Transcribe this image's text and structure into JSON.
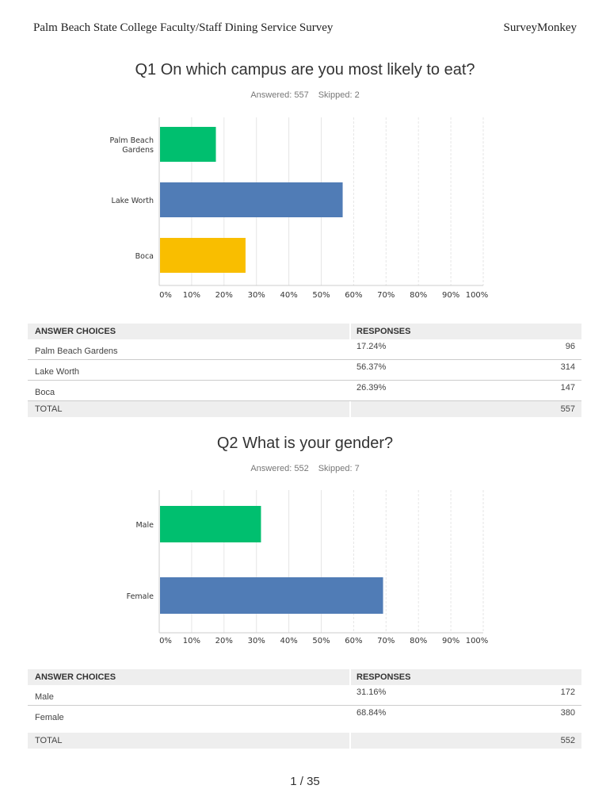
{
  "header": {
    "title": "Palm Beach State College Faculty/Staff Dining Service Survey",
    "brand": "SurveyMonkey"
  },
  "columns": {
    "choices": "ANSWER CHOICES",
    "responses": "RESPONSES",
    "total": "TOTAL"
  },
  "questions": [
    {
      "title": "Q1 On which campus are you most likely to eat?",
      "answered": "Answered: 557",
      "skipped": "Skipped: 2",
      "rows": [
        {
          "label": "Palm Beach Gardens",
          "pct": "17.24%",
          "count": "96"
        },
        {
          "label": "Lake Worth",
          "pct": "56.37%",
          "count": "314"
        },
        {
          "label": "Boca",
          "pct": "26.39%",
          "count": "147"
        }
      ],
      "total": "557"
    },
    {
      "title": "Q2 What is your gender?",
      "answered": "Answered: 552",
      "skipped": "Skipped: 7",
      "rows": [
        {
          "label": "Male",
          "pct": "31.16%",
          "count": "172"
        },
        {
          "label": "Female",
          "pct": "68.84%",
          "count": "380"
        }
      ],
      "total": "552"
    }
  ],
  "chart_data": [
    {
      "type": "bar",
      "orientation": "horizontal",
      "categories": [
        "Palm Beach Gardens",
        "Lake Worth",
        "Boca"
      ],
      "values": [
        17.24,
        56.37,
        26.39
      ],
      "colors": [
        "#00bf6f",
        "#507cb6",
        "#f9be00"
      ],
      "xlim": [
        0,
        100
      ],
      "ticks": [
        "0%",
        "10%",
        "20%",
        "30%",
        "40%",
        "50%",
        "60%",
        "70%",
        "80%",
        "90%",
        "100%"
      ],
      "grid": true
    },
    {
      "type": "bar",
      "orientation": "horizontal",
      "categories": [
        "Male",
        "Female"
      ],
      "values": [
        31.16,
        68.84
      ],
      "colors": [
        "#00bf6f",
        "#507cb6"
      ],
      "xlim": [
        0,
        100
      ],
      "ticks": [
        "0%",
        "10%",
        "20%",
        "30%",
        "40%",
        "50%",
        "60%",
        "70%",
        "80%",
        "90%",
        "100%"
      ],
      "grid": true
    }
  ],
  "footer": {
    "page": "1 / 35"
  }
}
